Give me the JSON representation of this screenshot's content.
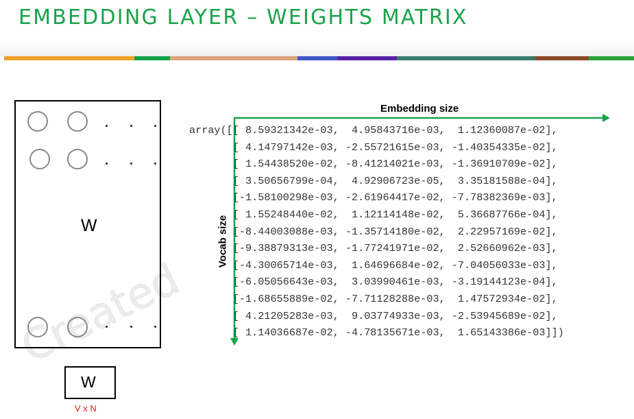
{
  "slide": {
    "title": "EMBEDDING LAYER – WEIGHTS MATRIX",
    "title_color": "#1aa34a",
    "stripe_colors": [
      "#f2a12a",
      "#16a04a",
      "#dba27d",
      "#3f56c8",
      "#5a22a8",
      "#3a7a6a",
      "#3a7a6a",
      "#8a4a28",
      "#2aa33a"
    ]
  },
  "diagram": {
    "matrix_label": "W",
    "vector_label": "W",
    "dims_label": "V x N",
    "dims_color": "#e01b1b",
    "watermark": "Created"
  },
  "axes": {
    "embedding_label": "Embedding size",
    "vocab_label": "Vocab size",
    "arrow_color": "#1aa34a"
  },
  "code": {
    "lines": [
      "array([[ 8.59321342e-03,  4.95843716e-03,  1.12360087e-02],",
      "       [ 4.14797142e-03, -2.55721615e-03, -1.40354335e-02],",
      "       [ 1.54438520e-02, -8.41214021e-03, -1.36910709e-02],",
      "       [ 3.50656799e-04,  4.92906723e-05,  3.35181588e-04],",
      "       [-1.58100298e-03, -2.61964417e-02, -7.78382369e-03],",
      "       [ 1.55248440e-02,  1.12114148e-02,  5.36687766e-04],",
      "       [-8.44003088e-03, -1.35714180e-02,  2.22957169e-02],",
      "       [-9.38879313e-03, -1.77241971e-02,  2.52660962e-03],",
      "       [-4.30065714e-03,  1.64696684e-02, -7.04056033e-03],",
      "       [-6.05056643e-03,  3.03990461e-03, -3.19144123e-04],",
      "       [-1.68655889e-02, -7.71128288e-03,  1.47572934e-02],",
      "       [ 4.21205283e-03,  9.03774933e-03, -2.53945689e-02],",
      "       [ 1.14036687e-02, -4.78135671e-03,  1.65143386e-03]])"
    ]
  }
}
